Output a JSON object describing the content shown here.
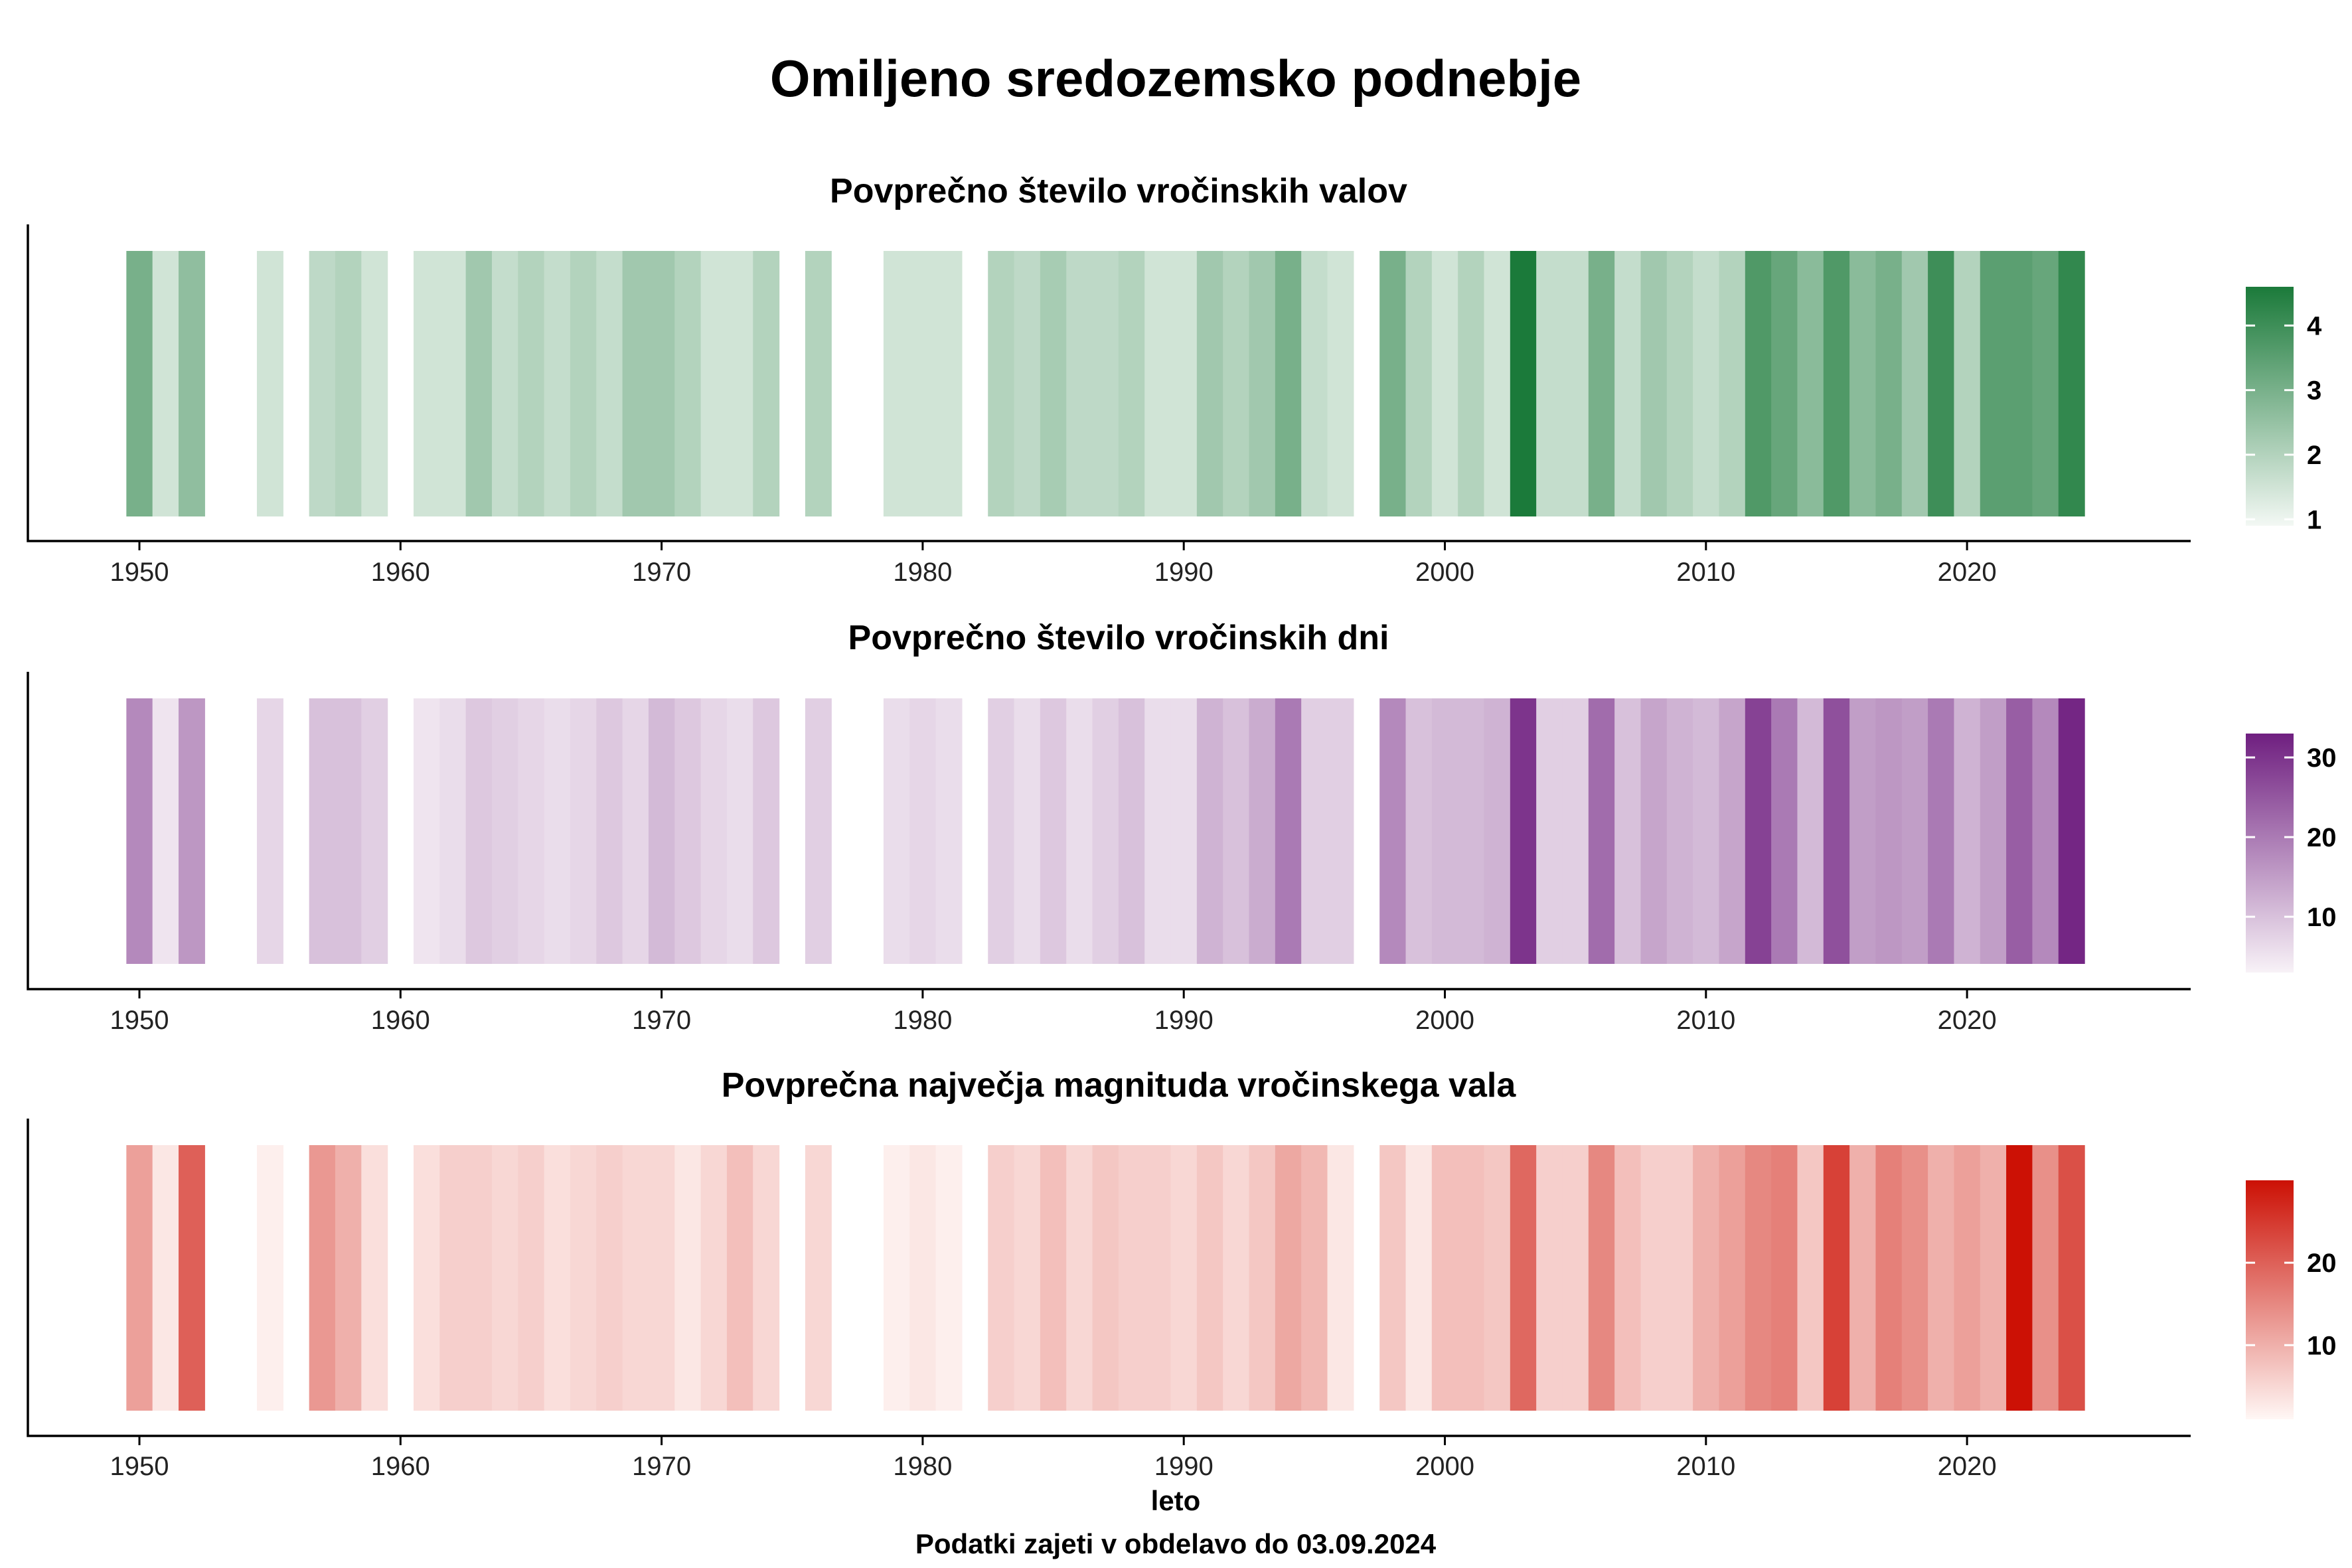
{
  "title": "Omiljeno sredozemsko podnebje",
  "xlabel": "leto",
  "caption": "Podatki zajeti v obdelavo do 03.09.2024",
  "chart_data": [
    {
      "type": "heatmap",
      "title": "Povprečno število vročinskih valov",
      "x_ticks": [
        1950,
        1960,
        1970,
        1980,
        1990,
        2000,
        2010,
        2020
      ],
      "color_low": "#f3f8f4",
      "color_high": "#1b7a3a",
      "colorbar_ticks": [
        1,
        2,
        3,
        4
      ],
      "colorbar_range": [
        0.9,
        4.6
      ],
      "years": [
        1950,
        1951,
        1952,
        1955,
        1957,
        1958,
        1959,
        1961,
        1962,
        1963,
        1964,
        1965,
        1966,
        1967,
        1968,
        1969,
        1970,
        1971,
        1972,
        1973,
        1974,
        1976,
        1979,
        1980,
        1981,
        1983,
        1984,
        1985,
        1986,
        1987,
        1988,
        1989,
        1990,
        1991,
        1992,
        1993,
        1994,
        1995,
        1996,
        1998,
        1999,
        2000,
        2001,
        2002,
        2003,
        2004,
        2005,
        2006,
        2007,
        2008,
        2009,
        2010,
        2011,
        2012,
        2013,
        2014,
        2015,
        2016,
        2017,
        2018,
        2019,
        2020,
        2021,
        2022,
        2023,
        2024
      ],
      "values": [
        3.0,
        1.5,
        2.6,
        1.5,
        1.8,
        2.0,
        1.5,
        1.5,
        1.5,
        2.3,
        1.7,
        2.0,
        1.7,
        2.0,
        1.7,
        2.3,
        2.3,
        2.0,
        1.5,
        1.5,
        2.0,
        2.0,
        1.5,
        1.5,
        1.5,
        2.0,
        1.8,
        2.2,
        1.8,
        1.8,
        2.0,
        1.5,
        1.5,
        2.3,
        2.0,
        2.3,
        3.0,
        1.7,
        1.5,
        3.0,
        2.0,
        1.5,
        2.0,
        1.5,
        4.6,
        1.7,
        1.7,
        3.0,
        1.7,
        2.3,
        2.0,
        1.7,
        2.0,
        3.7,
        3.3,
        2.7,
        3.7,
        2.7,
        3.0,
        2.3,
        4.0,
        2.0,
        3.5,
        3.5,
        3.3,
        4.2
      ]
    },
    {
      "type": "heatmap",
      "title": "Povprečno število vročinskih dni",
      "x_ticks": [
        1950,
        1960,
        1970,
        1980,
        1990,
        2000,
        2010,
        2020
      ],
      "color_low": "#f8f2f7",
      "color_high": "#6f1f80",
      "colorbar_ticks": [
        10,
        20,
        30
      ],
      "colorbar_range": [
        3,
        33
      ],
      "years": [
        1950,
        1951,
        1952,
        1955,
        1957,
        1958,
        1959,
        1961,
        1962,
        1963,
        1964,
        1965,
        1966,
        1967,
        1968,
        1969,
        1970,
        1971,
        1972,
        1973,
        1974,
        1976,
        1979,
        1980,
        1981,
        1983,
        1984,
        1985,
        1986,
        1987,
        1988,
        1989,
        1990,
        1991,
        1992,
        1993,
        1994,
        1995,
        1996,
        1998,
        1999,
        2000,
        2001,
        2002,
        2003,
        2004,
        2005,
        2006,
        2007,
        2008,
        2009,
        2010,
        2011,
        2012,
        2013,
        2014,
        2015,
        2016,
        2017,
        2018,
        2019,
        2020,
        2021,
        2022,
        2023,
        2024
      ],
      "values": [
        18,
        5,
        16,
        7,
        10,
        10,
        8,
        5,
        6,
        9,
        8,
        7,
        6,
        7,
        9,
        7,
        11,
        9,
        7,
        6,
        9,
        8,
        6,
        7,
        6,
        8,
        6,
        9,
        6,
        8,
        10,
        6,
        6,
        12,
        10,
        13,
        20,
        8,
        8,
        18,
        10,
        11,
        11,
        12,
        30,
        8,
        8,
        22,
        10,
        14,
        12,
        11,
        14,
        28,
        20,
        11,
        26,
        15,
        16,
        15,
        20,
        12,
        15,
        24,
        18,
        32
      ]
    },
    {
      "type": "heatmap",
      "title": "Povprečna največja magnituda vročinskega vala",
      "x_ticks": [
        1950,
        1960,
        1970,
        1980,
        1990,
        2000,
        2010,
        2020
      ],
      "color_low": "#fff7f5",
      "color_high": "#cc1105",
      "colorbar_ticks": [
        10,
        20
      ],
      "colorbar_range": [
        1,
        30
      ],
      "years": [
        1950,
        1951,
        1952,
        1955,
        1957,
        1958,
        1959,
        1961,
        1962,
        1963,
        1964,
        1965,
        1966,
        1967,
        1968,
        1969,
        1970,
        1971,
        1972,
        1973,
        1974,
        1976,
        1979,
        1980,
        1981,
        1983,
        1984,
        1985,
        1986,
        1987,
        1988,
        1989,
        1990,
        1991,
        1992,
        1993,
        1994,
        1995,
        1996,
        1998,
        1999,
        2000,
        2001,
        2002,
        2003,
        2004,
        2005,
        2006,
        2007,
        2008,
        2009,
        2010,
        2011,
        2012,
        2013,
        2014,
        2015,
        2016,
        2017,
        2018,
        2019,
        2020,
        2021,
        2022,
        2023,
        2024
      ],
      "values": [
        12,
        3,
        20,
        2,
        13,
        10,
        4,
        4,
        6,
        6,
        5,
        6,
        4,
        5,
        6,
        5,
        5,
        3,
        5,
        8,
        5,
        5,
        2,
        3,
        2,
        6,
        5,
        8,
        5,
        7,
        6,
        6,
        5,
        7,
        5,
        7,
        11,
        9,
        3,
        7,
        3,
        8,
        8,
        7,
        19,
        6,
        6,
        15,
        8,
        6,
        6,
        10,
        12,
        15,
        16,
        7,
        24,
        10,
        16,
        14,
        10,
        12,
        10,
        30,
        14,
        22
      ]
    }
  ]
}
